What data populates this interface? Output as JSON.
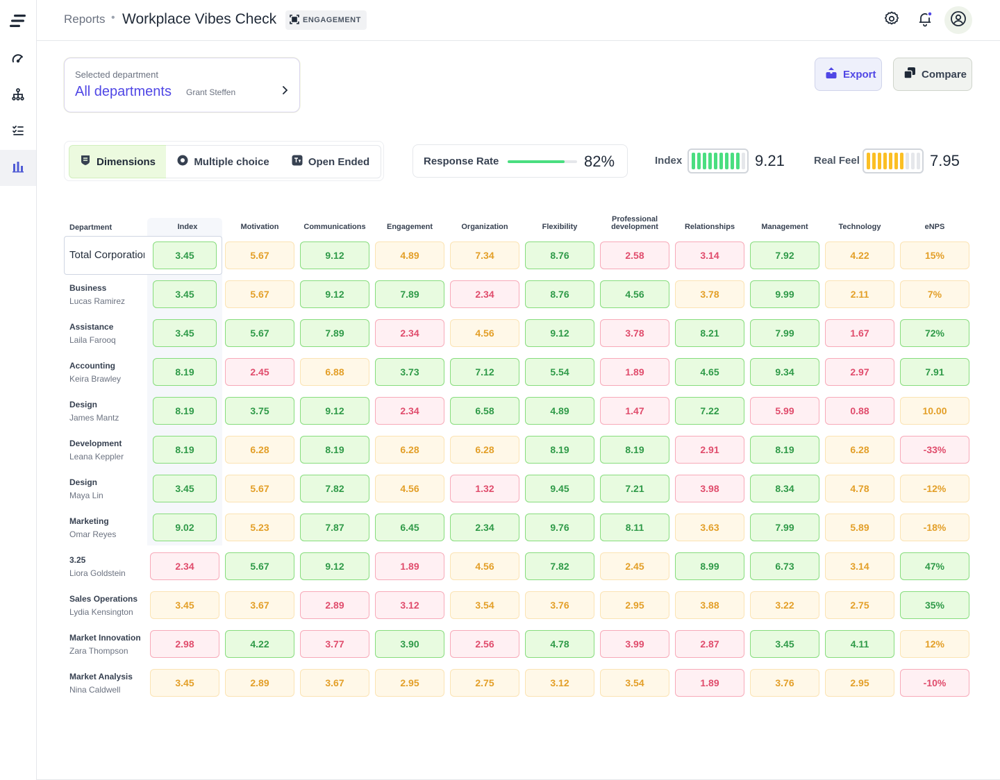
{
  "header": {
    "breadcrumb": "Reports",
    "separator": "•",
    "title": "Workplace Vibes Check",
    "badge": "ENGAGEMENT"
  },
  "sidebar": {
    "items": [
      {
        "icon": "speed-icon"
      },
      {
        "icon": "org-chart-icon"
      },
      {
        "icon": "checklist-icon"
      },
      {
        "icon": "bar-chart-icon",
        "active": true
      }
    ]
  },
  "department": {
    "label": "Selected department",
    "value": "All departments",
    "owner": "Grant Steffen"
  },
  "actions": {
    "export": "Export",
    "compare": "Compare"
  },
  "tabs": [
    {
      "label": "Dimensions",
      "icon": "shield-icon",
      "active": true
    },
    {
      "label": "Multiple choice",
      "icon": "radio-icon"
    },
    {
      "label": "Open Ended",
      "icon": "text-box-icon"
    }
  ],
  "response_rate": {
    "label": "Response Rate",
    "value": "82%",
    "fraction": 0.82
  },
  "index_metric": {
    "label": "Index",
    "value": "9.21",
    "filled_bars": 9,
    "total_bars": 10,
    "color": "#4ade80"
  },
  "real_feel_metric": {
    "label": "Real Feel",
    "value": "7.95",
    "filled_bars": 7,
    "total_bars": 10,
    "color": "#fbbf24"
  },
  "table": {
    "department_header": "Department",
    "columns": [
      "Index",
      "Motivation",
      "Communications",
      "Engagement",
      "Organization",
      "Flexibility",
      "Professional development",
      "Relationships",
      "Management",
      "Technology",
      "eNPS"
    ],
    "colors": {
      "g": "#2f9a48",
      "y": "#e39f28",
      "r": "#e04c6c"
    },
    "total": {
      "name": "Total Corporation",
      "cells": [
        [
          "3.45",
          "g"
        ],
        [
          "5.67",
          "y"
        ],
        [
          "9.12",
          "g"
        ],
        [
          "4.89",
          "y"
        ],
        [
          "7.34",
          "y"
        ],
        [
          "8.76",
          "g"
        ],
        [
          "2.58",
          "r"
        ],
        [
          "3.14",
          "r"
        ],
        [
          "7.92",
          "g"
        ],
        [
          "4.22",
          "y"
        ],
        [
          "15%",
          "y"
        ]
      ]
    },
    "rows": [
      {
        "name": "Business",
        "owner": "Lucas Ramirez",
        "cells": [
          [
            "3.45",
            "g"
          ],
          [
            "5.67",
            "y"
          ],
          [
            "9.12",
            "g"
          ],
          [
            "7.89",
            "g"
          ],
          [
            "2.34",
            "r"
          ],
          [
            "8.76",
            "g"
          ],
          [
            "4.56",
            "g"
          ],
          [
            "3.78",
            "y"
          ],
          [
            "9.99",
            "g"
          ],
          [
            "2.11",
            "y"
          ],
          [
            "7%",
            "y"
          ]
        ]
      },
      {
        "name": "Assistance",
        "owner": "Laila Farooq",
        "cells": [
          [
            "3.45",
            "g"
          ],
          [
            "5.67",
            "g"
          ],
          [
            "7.89",
            "g"
          ],
          [
            "2.34",
            "r"
          ],
          [
            "4.56",
            "y"
          ],
          [
            "9.12",
            "g"
          ],
          [
            "3.78",
            "r"
          ],
          [
            "8.21",
            "g"
          ],
          [
            "7.99",
            "g"
          ],
          [
            "1.67",
            "r"
          ],
          [
            "72%",
            "g"
          ]
        ]
      },
      {
        "name": "Accounting",
        "owner": "Keira Brawley",
        "cells": [
          [
            "8.19",
            "g"
          ],
          [
            "2.45",
            "r"
          ],
          [
            "6.88",
            "y"
          ],
          [
            "3.73",
            "g"
          ],
          [
            "7.12",
            "g"
          ],
          [
            "5.54",
            "g"
          ],
          [
            "1.89",
            "r"
          ],
          [
            "4.65",
            "g"
          ],
          [
            "9.34",
            "g"
          ],
          [
            "2.97",
            "r"
          ],
          [
            "7.91",
            "g"
          ]
        ]
      },
      {
        "name": "Design",
        "owner": "James Mantz",
        "cells": [
          [
            "8.19",
            "g"
          ],
          [
            "3.75",
            "g"
          ],
          [
            "9.12",
            "g"
          ],
          [
            "2.34",
            "r"
          ],
          [
            "6.58",
            "g"
          ],
          [
            "4.89",
            "g"
          ],
          [
            "1.47",
            "r"
          ],
          [
            "7.22",
            "g"
          ],
          [
            "5.99",
            "r"
          ],
          [
            "0.88",
            "r"
          ],
          [
            "10.00",
            "y"
          ]
        ]
      },
      {
        "name": "Development",
        "owner": "Leana Keppler",
        "cells": [
          [
            "8.19",
            "g"
          ],
          [
            "6.28",
            "y"
          ],
          [
            "8.19",
            "g"
          ],
          [
            "6.28",
            "y"
          ],
          [
            "6.28",
            "y"
          ],
          [
            "8.19",
            "g"
          ],
          [
            "8.19",
            "g"
          ],
          [
            "2.91",
            "r"
          ],
          [
            "8.19",
            "g"
          ],
          [
            "6.28",
            "y"
          ],
          [
            "-33%",
            "r"
          ]
        ]
      },
      {
        "name": "Design",
        "owner": "Maya Lin",
        "cells": [
          [
            "3.45",
            "g"
          ],
          [
            "5.67",
            "y"
          ],
          [
            "7.82",
            "g"
          ],
          [
            "4.56",
            "y"
          ],
          [
            "1.32",
            "r"
          ],
          [
            "9.45",
            "g"
          ],
          [
            "7.21",
            "g"
          ],
          [
            "3.98",
            "r"
          ],
          [
            "8.34",
            "g"
          ],
          [
            "4.78",
            "y"
          ],
          [
            "-12%",
            "y"
          ]
        ]
      },
      {
        "name": "Marketing",
        "owner": "Omar Reyes",
        "cells": [
          [
            "9.02",
            "g"
          ],
          [
            "5.23",
            "y"
          ],
          [
            "7.87",
            "g"
          ],
          [
            "6.45",
            "g"
          ],
          [
            "2.34",
            "g"
          ],
          [
            "9.76",
            "g"
          ],
          [
            "8.11",
            "g"
          ],
          [
            "3.63",
            "y"
          ],
          [
            "7.99",
            "g"
          ],
          [
            "5.89",
            "y"
          ],
          [
            "-18%",
            "y"
          ]
        ]
      },
      {
        "name": "3.25",
        "owner": "Liora Goldstein",
        "cells": [
          [
            "2.34",
            "r"
          ],
          [
            "5.67",
            "g"
          ],
          [
            "9.12",
            "g"
          ],
          [
            "1.89",
            "r"
          ],
          [
            "4.56",
            "y"
          ],
          [
            "7.82",
            "g"
          ],
          [
            "2.45",
            "y"
          ],
          [
            "8.99",
            "g"
          ],
          [
            "6.73",
            "g"
          ],
          [
            "3.14",
            "y"
          ],
          [
            "47%",
            "g"
          ]
        ]
      },
      {
        "name": "Sales Operations",
        "owner": "Lydia Kensington",
        "cells": [
          [
            "3.45",
            "y"
          ],
          [
            "3.67",
            "y"
          ],
          [
            "2.89",
            "r"
          ],
          [
            "3.12",
            "r"
          ],
          [
            "3.54",
            "y"
          ],
          [
            "3.76",
            "y"
          ],
          [
            "2.95",
            "y"
          ],
          [
            "3.88",
            "y"
          ],
          [
            "3.22",
            "y"
          ],
          [
            "2.75",
            "y"
          ],
          [
            "35%",
            "g"
          ]
        ]
      },
      {
        "name": "Market Innovation",
        "owner": "Zara Thompson",
        "cells": [
          [
            "2.98",
            "r"
          ],
          [
            "4.22",
            "g"
          ],
          [
            "3.77",
            "r"
          ],
          [
            "3.90",
            "g"
          ],
          [
            "2.56",
            "r"
          ],
          [
            "4.78",
            "g"
          ],
          [
            "3.99",
            "r"
          ],
          [
            "2.87",
            "r"
          ],
          [
            "3.45",
            "g"
          ],
          [
            "4.11",
            "g"
          ],
          [
            "12%",
            "y"
          ]
        ]
      },
      {
        "name": "Market Analysis",
        "owner": "Nina Caldwell",
        "cells": [
          [
            "3.45",
            "y"
          ],
          [
            "2.89",
            "y"
          ],
          [
            "3.67",
            "y"
          ],
          [
            "2.95",
            "y"
          ],
          [
            "2.75",
            "y"
          ],
          [
            "3.12",
            "y"
          ],
          [
            "3.54",
            "y"
          ],
          [
            "1.89",
            "r"
          ],
          [
            "3.76",
            "y"
          ],
          [
            "2.95",
            "y"
          ],
          [
            "-10%",
            "r"
          ]
        ]
      }
    ]
  }
}
